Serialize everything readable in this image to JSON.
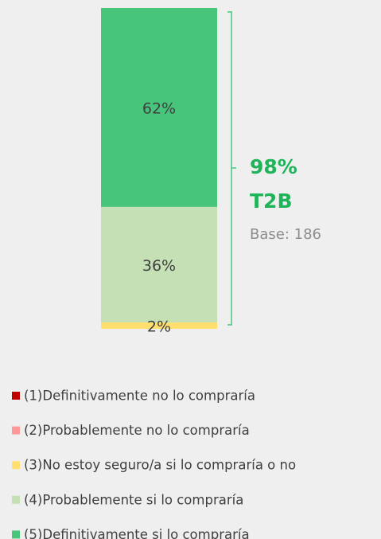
{
  "chart_data": {
    "type": "stacked_bar",
    "categories": [
      null
    ],
    "ylim": [
      0,
      100
    ],
    "series": [
      {
        "name": "(1)Definitivamente no lo compraría",
        "color": "#c00000",
        "values": [
          0
        ]
      },
      {
        "name": "(2)Probablemente no lo compraría",
        "color": "#ff9999",
        "values": [
          0
        ]
      },
      {
        "name": "(3)No estoy seguro/a si lo compraría o no",
        "color": "#ffdf6e",
        "values": [
          2
        ],
        "value_labels": [
          "2%"
        ]
      },
      {
        "name": "(4)Probablemente si lo compraría",
        "color": "#c5e0b4",
        "values": [
          36
        ],
        "value_labels": [
          "36%"
        ]
      },
      {
        "name": "(5)Definitivamente si lo compraría",
        "color": "#47c57b",
        "values": [
          62
        ],
        "value_labels": [
          "62%"
        ]
      }
    ],
    "annotations": [
      "98%",
      "T2B",
      "Base: 186"
    ]
  }
}
